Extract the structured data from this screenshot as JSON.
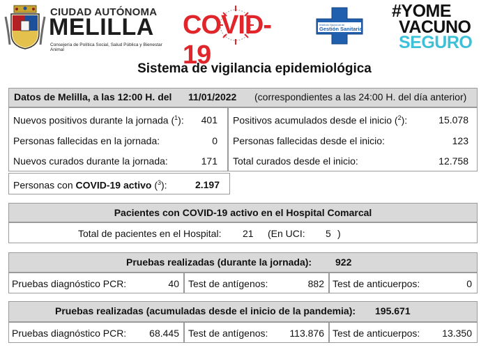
{
  "header": {
    "melilla_line1": "CIUDAD AUTÓNOMA",
    "melilla_line2": "MELILLA",
    "melilla_sub": "Consejería de Política Social, Salud Pública y Bienestar Animal",
    "covid_logo": "COVID-19",
    "gestion_line1": "Instituto Nacional de",
    "gestion_line2": "Gestión Sanitaria",
    "campaign_line1": "#YOME",
    "campaign_line2": "VACUNO",
    "campaign_line3": "SEGURO"
  },
  "title": "Sistema de vigilancia epidemiológica",
  "datos": {
    "label": "Datos de Melilla, a  las 12:00 H. del",
    "date": "11/01/2022",
    "note": "(correspondientes a las 24:00 H. del día anterior)"
  },
  "stats_left": [
    {
      "label": "Nuevos positivos durante la jornada (",
      "sup": "1",
      "label_end": "):",
      "value": "401"
    },
    {
      "label": "Personas fallecidas en la jornada:",
      "sup": "",
      "label_end": "",
      "value": "0"
    },
    {
      "label": "Nuevos curados durante la jornada:",
      "sup": "",
      "label_end": "",
      "value": "171"
    }
  ],
  "stats_right": [
    {
      "label": "Positivos acumulados desde el inicio (",
      "sup": "2",
      "label_end": "):",
      "value": "15.078"
    },
    {
      "label": "Personas fallecidas desde el inicio:",
      "sup": "",
      "label_end": "",
      "value": "123"
    },
    {
      "label": "Total curados desde el inicio:",
      "sup": "",
      "label_end": "",
      "value": "12.758"
    }
  ],
  "activos": {
    "label_pre": "Personas con ",
    "label_bold": "COVID-19 activo",
    "label_open": " (",
    "sup": "3",
    "label_close": "):",
    "value": "2.197"
  },
  "hospital": {
    "header": "Pacientes con COVID-19 activo en el Hospital Comarcal",
    "total_label": "Total de pacientes en el Hospital:",
    "total_value": "21",
    "uci_label": "(En UCI:",
    "uci_value": "5",
    "uci_close": ")"
  },
  "pruebas_dia": {
    "header_label": "Pruebas realizadas (durante la jornada):",
    "header_value": "922",
    "pcr_label": "Pruebas diagnóstico PCR:",
    "pcr_value": "40",
    "ant_label": "Test de antígenos:",
    "ant_value": "882",
    "anticuerpos_label": "Test de anticuerpos:",
    "anticuerpos_value": "0"
  },
  "pruebas_acum": {
    "header_label": "Pruebas realizadas (acumuladas desde el inicio de la pandemia):",
    "header_value": "195.671",
    "pcr_label": "Pruebas diagnóstico PCR:",
    "pcr_value": "68.445",
    "ant_label": "Test de antígenos:",
    "ant_value": "113.876",
    "anticuerpos_label": "Test de  anticuerpos:",
    "anticuerpos_value": "13.350"
  },
  "colors": {
    "covid_red": "#e0252b",
    "seguro_cyan": "#3ec1d6",
    "gestion_blue": "#1f5fae",
    "header_shade": "#d9d9d9"
  }
}
